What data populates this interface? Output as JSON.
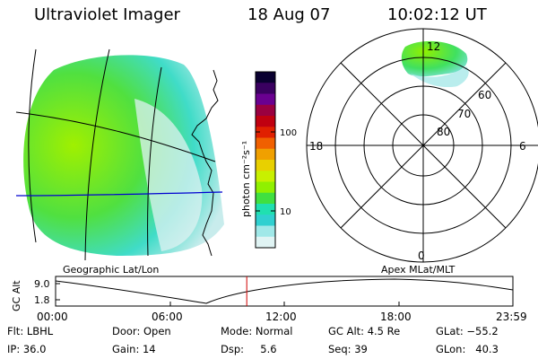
{
  "header": {
    "instrument": "Ultraviolet Imager",
    "date": "18 Aug 07",
    "time": "10:02:12 UT"
  },
  "colorbar": {
    "unit_label": "photon cm⁻²s⁻¹",
    "tick_labels": [
      "100",
      "10"
    ],
    "colors": [
      "#0a0030",
      "#3a0060",
      "#6a0090",
      "#9a0040",
      "#c00010",
      "#e02000",
      "#f06000",
      "#f0a000",
      "#e8d000",
      "#c8f000",
      "#90f000",
      "#40e040",
      "#20e0b0",
      "#30d0d0",
      "#a0e8e8",
      "#e0f4f4"
    ]
  },
  "left_panel": {
    "caption": "Geographic Lat/Lon"
  },
  "right_panel": {
    "caption": "Apex MLat/MLT",
    "mlt_labels": {
      "top": "12",
      "left": "18",
      "right": "6",
      "bottom": "0"
    },
    "mlat_labels": [
      "60",
      "70",
      "80"
    ]
  },
  "timeline": {
    "ylabel": "GC Alt",
    "y_ticks": [
      "9.0",
      "1.8"
    ],
    "x_ticks": [
      "00:00",
      "06:00",
      "12:00",
      "18:00",
      "23:59"
    ],
    "marker_color": "#d00000",
    "marker_fraction": 0.418
  },
  "status": {
    "flt": "Flt: LBHL",
    "ip": "IP: 36.0",
    "door": "Door: Open",
    "gain": "Gain: 14",
    "mode": "Mode: Normal",
    "dsp": "Dsp:     5.6",
    "gcalt": "GC Alt: 4.5 Re",
    "seq": "Seq: 39",
    "glat": "GLat: −55.2",
    "glon": "GLon:   40.3"
  }
}
